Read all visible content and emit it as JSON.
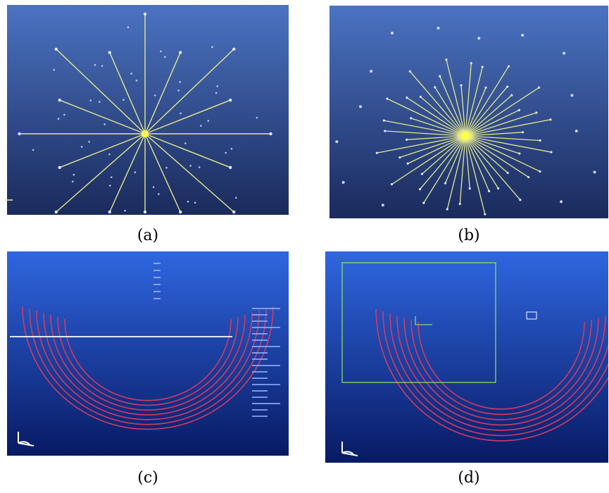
{
  "captions": {
    "a": "(a)",
    "b": "(b)",
    "c": "(c)",
    "d": "(d)"
  },
  "colors": {
    "viewport_top": "#4b73c2",
    "viewport_bottom": "#1a2a5c",
    "viewport_blue_top": "#2f66e0",
    "viewport_blue_bottom": "#081a63",
    "ray_line": "#e6e88a",
    "ray_center": "#ffff44",
    "node_dot": "#dfe3ff",
    "arc_line": "#d23a63",
    "ground_line": "#e2e6ff",
    "frame_line": "#88dd66"
  },
  "icons": [
    "triad-axes-icon"
  ]
}
